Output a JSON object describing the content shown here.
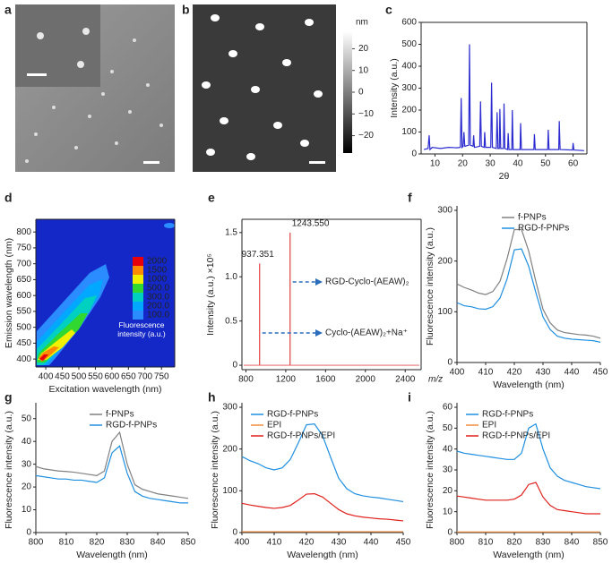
{
  "chart_data": [
    {
      "type": "image",
      "panel": "a"
    },
    {
      "type": "image",
      "panel": "b",
      "colorbar_label": "nm",
      "colorbar_lim": [
        -28,
        28
      ],
      "colorbar_ticks": [
        20,
        10,
        0,
        {
          "value": -10,
          "label": "−10"
        },
        {
          "value": -20,
          "label": "−20"
        }
      ]
    },
    {
      "type": "line",
      "panel": "c",
      "box": true,
      "xlabel": "2θ",
      "ylabel": "Intensity (a.u.)",
      "xlim": [
        5,
        65
      ],
      "xticks": [
        10,
        20,
        30,
        40,
        50,
        60
      ],
      "ylim": [
        0,
        600
      ],
      "yticks": [
        0,
        100,
        200,
        300,
        400,
        500,
        600
      ],
      "x": [
        6,
        7.5,
        7.9,
        8.2,
        9,
        12,
        15,
        18,
        19.2,
        19.5,
        19.8,
        20.2,
        20.5,
        20.8,
        22.2,
        22.5,
        22.8,
        23.8,
        24,
        24.3,
        26.2,
        26.5,
        26.8,
        27.8,
        28,
        28.3,
        30.2,
        30.5,
        30.8,
        32.2,
        32.5,
        32.8,
        33.3,
        33.5,
        33.8,
        34.8,
        35,
        35.3,
        36.3,
        36.5,
        36.8,
        37.8,
        38,
        38.3,
        40.8,
        41,
        41.3,
        45.8,
        46,
        46.3,
        50.8,
        51,
        51.3,
        54.8,
        55,
        55.3,
        59.8,
        60,
        60.3,
        64
      ],
      "series": [
        {
          "color": "#2b2bd0",
          "values": [
            20,
            25,
            85,
            20,
            30,
            25,
            30,
            28,
            30,
            255,
            30,
            35,
            100,
            35,
            40,
            500,
            40,
            35,
            85,
            30,
            35,
            240,
            35,
            30,
            100,
            30,
            30,
            325,
            30,
            25,
            190,
            25,
            25,
            205,
            25,
            25,
            230,
            25,
            20,
            95,
            20,
            20,
            200,
            20,
            20,
            140,
            20,
            20,
            90,
            20,
            20,
            110,
            20,
            20,
            150,
            20,
            18,
            50,
            18,
            15
          ]
        }
      ]
    },
    {
      "type": "contour",
      "panel": "d",
      "box": true,
      "xlabel": "Excitation wavelength (nm)",
      "ylabel": "Emission wavelength (nm)",
      "xlim": [
        370,
        790
      ],
      "xticks": [
        400,
        450,
        500,
        550,
        600,
        650,
        700,
        750
      ],
      "ylim": [
        375,
        840
      ],
      "yticks": [
        400,
        450,
        500,
        550,
        600,
        650,
        700,
        750,
        800
      ],
      "background": "#1428c8",
      "legend_title": "Fluorescence intensity (a.u.)",
      "levels": [
        2000,
        1500,
        1000,
        {
          "value": 500,
          "label": "500.0"
        },
        {
          "value": 300,
          "label": "300.0"
        },
        {
          "value": 200,
          "label": "200.0"
        },
        {
          "value": 100,
          "label": "100.0"
        }
      ],
      "level_colors": [
        "#e8000b",
        "#ff8c00",
        "#f0f000",
        "#30d830",
        "#00d0c0",
        "#00a8ff",
        "#2a8cff"
      ]
    },
    {
      "type": "stem",
      "panel": "e",
      "box": true,
      "xlabel": "m/z",
      "ylabel": "Intensity (a.u.) ×10⁵",
      "xlim": [
        760,
        2560
      ],
      "xticks": [
        800,
        1200,
        1600,
        2000,
        2400
      ],
      "ylim": [
        -0.05,
        1.65
      ],
      "yticks": [
        0,
        0.5,
        {
          "value": 1,
          "label": "1.0"
        },
        1.5
      ],
      "color": "#e05050",
      "x": [
        937.351,
        1243.55
      ],
      "values": [
        1.15,
        1.5
      ],
      "x_labels": [
        "937.351",
        "1243.550"
      ],
      "annotations": [
        "RGD-Cyclo-(AEAW)₂",
        "Cyclo-(AEAW)₂+Na⁺"
      ]
    },
    {
      "type": "line",
      "panel": "f",
      "xlabel": "Wavelength (nm)",
      "ylabel": "Fluorescence intensity (a.u.)",
      "xlim": [
        400,
        450
      ],
      "xticks": [
        400,
        410,
        420,
        430,
        440,
        450
      ],
      "ylim": [
        0,
        300
      ],
      "yticks": [
        0,
        100,
        200,
        300
      ],
      "legend": "upper right",
      "x": [
        400,
        402.5,
        405,
        407.5,
        410,
        412.5,
        415,
        417.5,
        420,
        422.5,
        425,
        427.5,
        430,
        432.5,
        435,
        437.5,
        440,
        442.5,
        445,
        447.5,
        450
      ],
      "series": [
        {
          "name": "f-PNPs",
          "color": "#808080",
          "values": [
            155,
            148,
            143,
            137,
            134,
            140,
            160,
            205,
            262,
            262,
            220,
            160,
            105,
            78,
            64,
            59,
            57,
            55,
            54,
            52,
            48
          ]
        },
        {
          "name": "RGD-f-PNPs",
          "color": "#1f8fe0",
          "values": [
            118,
            112,
            110,
            106,
            105,
            110,
            127,
            165,
            222,
            224,
            190,
            138,
            90,
            65,
            52,
            48,
            46,
            45,
            44,
            43,
            40
          ]
        }
      ]
    },
    {
      "type": "line",
      "panel": "g",
      "xlabel": "Wavelength (nm)",
      "ylabel": "Fluorescence intensity (a.u.)",
      "xlim": [
        800,
        850
      ],
      "xticks": [
        800,
        810,
        820,
        830,
        840,
        850
      ],
      "ylim": [
        0,
        55
      ],
      "yticks": [
        0,
        10,
        20,
        30,
        40,
        50
      ],
      "legend": "upper right",
      "x": [
        800,
        802.5,
        805,
        807.5,
        810,
        812.5,
        815,
        817.5,
        820,
        822.5,
        825,
        827.5,
        830,
        832.5,
        835,
        837.5,
        840,
        842.5,
        845,
        847.5,
        850
      ],
      "series": [
        {
          "name": "f-PNPs",
          "color": "#808080",
          "values": [
            29,
            28,
            27.5,
            27,
            26.8,
            26.5,
            26,
            25.5,
            25,
            27,
            40,
            44,
            30,
            21,
            19,
            18,
            17,
            16.5,
            16,
            15.5,
            15
          ]
        },
        {
          "name": "RGD-f-PNPs",
          "color": "#1f8fe0",
          "values": [
            25,
            24.5,
            24,
            23.5,
            23.5,
            23,
            23,
            22.5,
            22,
            24,
            35,
            38,
            26,
            18,
            16,
            15,
            14.5,
            14,
            13.5,
            13,
            13
          ]
        }
      ]
    },
    {
      "type": "line",
      "panel": "h",
      "xlabel": "Wavelength (nm)",
      "ylabel": "Fluorescence intensity (a.u.)",
      "xlim": [
        400,
        450
      ],
      "xticks": [
        400,
        410,
        420,
        430,
        440,
        450
      ],
      "ylim": [
        0,
        300
      ],
      "yticks": [
        0,
        100,
        200,
        300
      ],
      "legend": "upper left",
      "x": [
        400,
        402.5,
        405,
        407.5,
        410,
        412.5,
        415,
        417.5,
        420,
        422.5,
        425,
        427.5,
        430,
        432.5,
        435,
        437.5,
        440,
        442.5,
        445,
        447.5,
        450
      ],
      "series": [
        {
          "name": "RGD-f-PNPs",
          "color": "#1f8fe0",
          "values": [
            182,
            172,
            165,
            155,
            150,
            155,
            175,
            215,
            258,
            260,
            232,
            180,
            130,
            105,
            93,
            88,
            85,
            83,
            80,
            77,
            74
          ]
        },
        {
          "name": "EPI",
          "color": "#f08c3c",
          "values": [
            2,
            2,
            2,
            2,
            2,
            2,
            2,
            2,
            2,
            2,
            2,
            2,
            2,
            2,
            2,
            2,
            2,
            2,
            2,
            2,
            2
          ]
        },
        {
          "name": "RGD-f-PNPs/EPI",
          "color": "#e0201c",
          "values": [
            70,
            66,
            63,
            60,
            58,
            60,
            65,
            78,
            92,
            93,
            85,
            70,
            55,
            45,
            40,
            37,
            35,
            33,
            32,
            30,
            28
          ]
        }
      ]
    },
    {
      "type": "line",
      "panel": "i",
      "xlabel": "Wavelength (nm)",
      "ylabel": "Fluorescence intensity (a.u.)",
      "xlim": [
        800,
        850
      ],
      "xticks": [
        800,
        810,
        820,
        830,
        840,
        850
      ],
      "ylim": [
        0,
        60
      ],
      "yticks": [
        0,
        10,
        20,
        30,
        40,
        50,
        60
      ],
      "legend": "upper left",
      "x": [
        800,
        802.5,
        805,
        807.5,
        810,
        812.5,
        815,
        817.5,
        820,
        822.5,
        825,
        827.5,
        830,
        832.5,
        835,
        837.5,
        840,
        842.5,
        845,
        847.5,
        850
      ],
      "series": [
        {
          "name": "RGD-f-PNPs",
          "color": "#1f8fe0",
          "values": [
            39,
            38,
            37.5,
            37,
            36.5,
            36,
            35.5,
            35,
            35,
            38,
            50,
            52,
            40,
            31,
            27,
            25,
            24,
            23,
            22,
            21.5,
            21
          ]
        },
        {
          "name": "EPI",
          "color": "#f08c3c",
          "values": [
            0.3,
            0.3,
            0.3,
            0.3,
            0.3,
            0.3,
            0.3,
            0.3,
            0.3,
            0.3,
            0.3,
            0.3,
            0.3,
            0.3,
            0.3,
            0.3,
            0.3,
            0.3,
            0.3,
            0.3,
            0.3
          ]
        },
        {
          "name": "RGD-f-PNPs/EPI",
          "color": "#e0201c",
          "values": [
            17.5,
            17,
            16.5,
            16,
            15.5,
            15.5,
            15.5,
            15.5,
            16,
            18,
            23,
            24,
            17,
            13,
            11,
            10.5,
            10,
            9.5,
            9,
            9,
            9
          ]
        }
      ]
    }
  ]
}
